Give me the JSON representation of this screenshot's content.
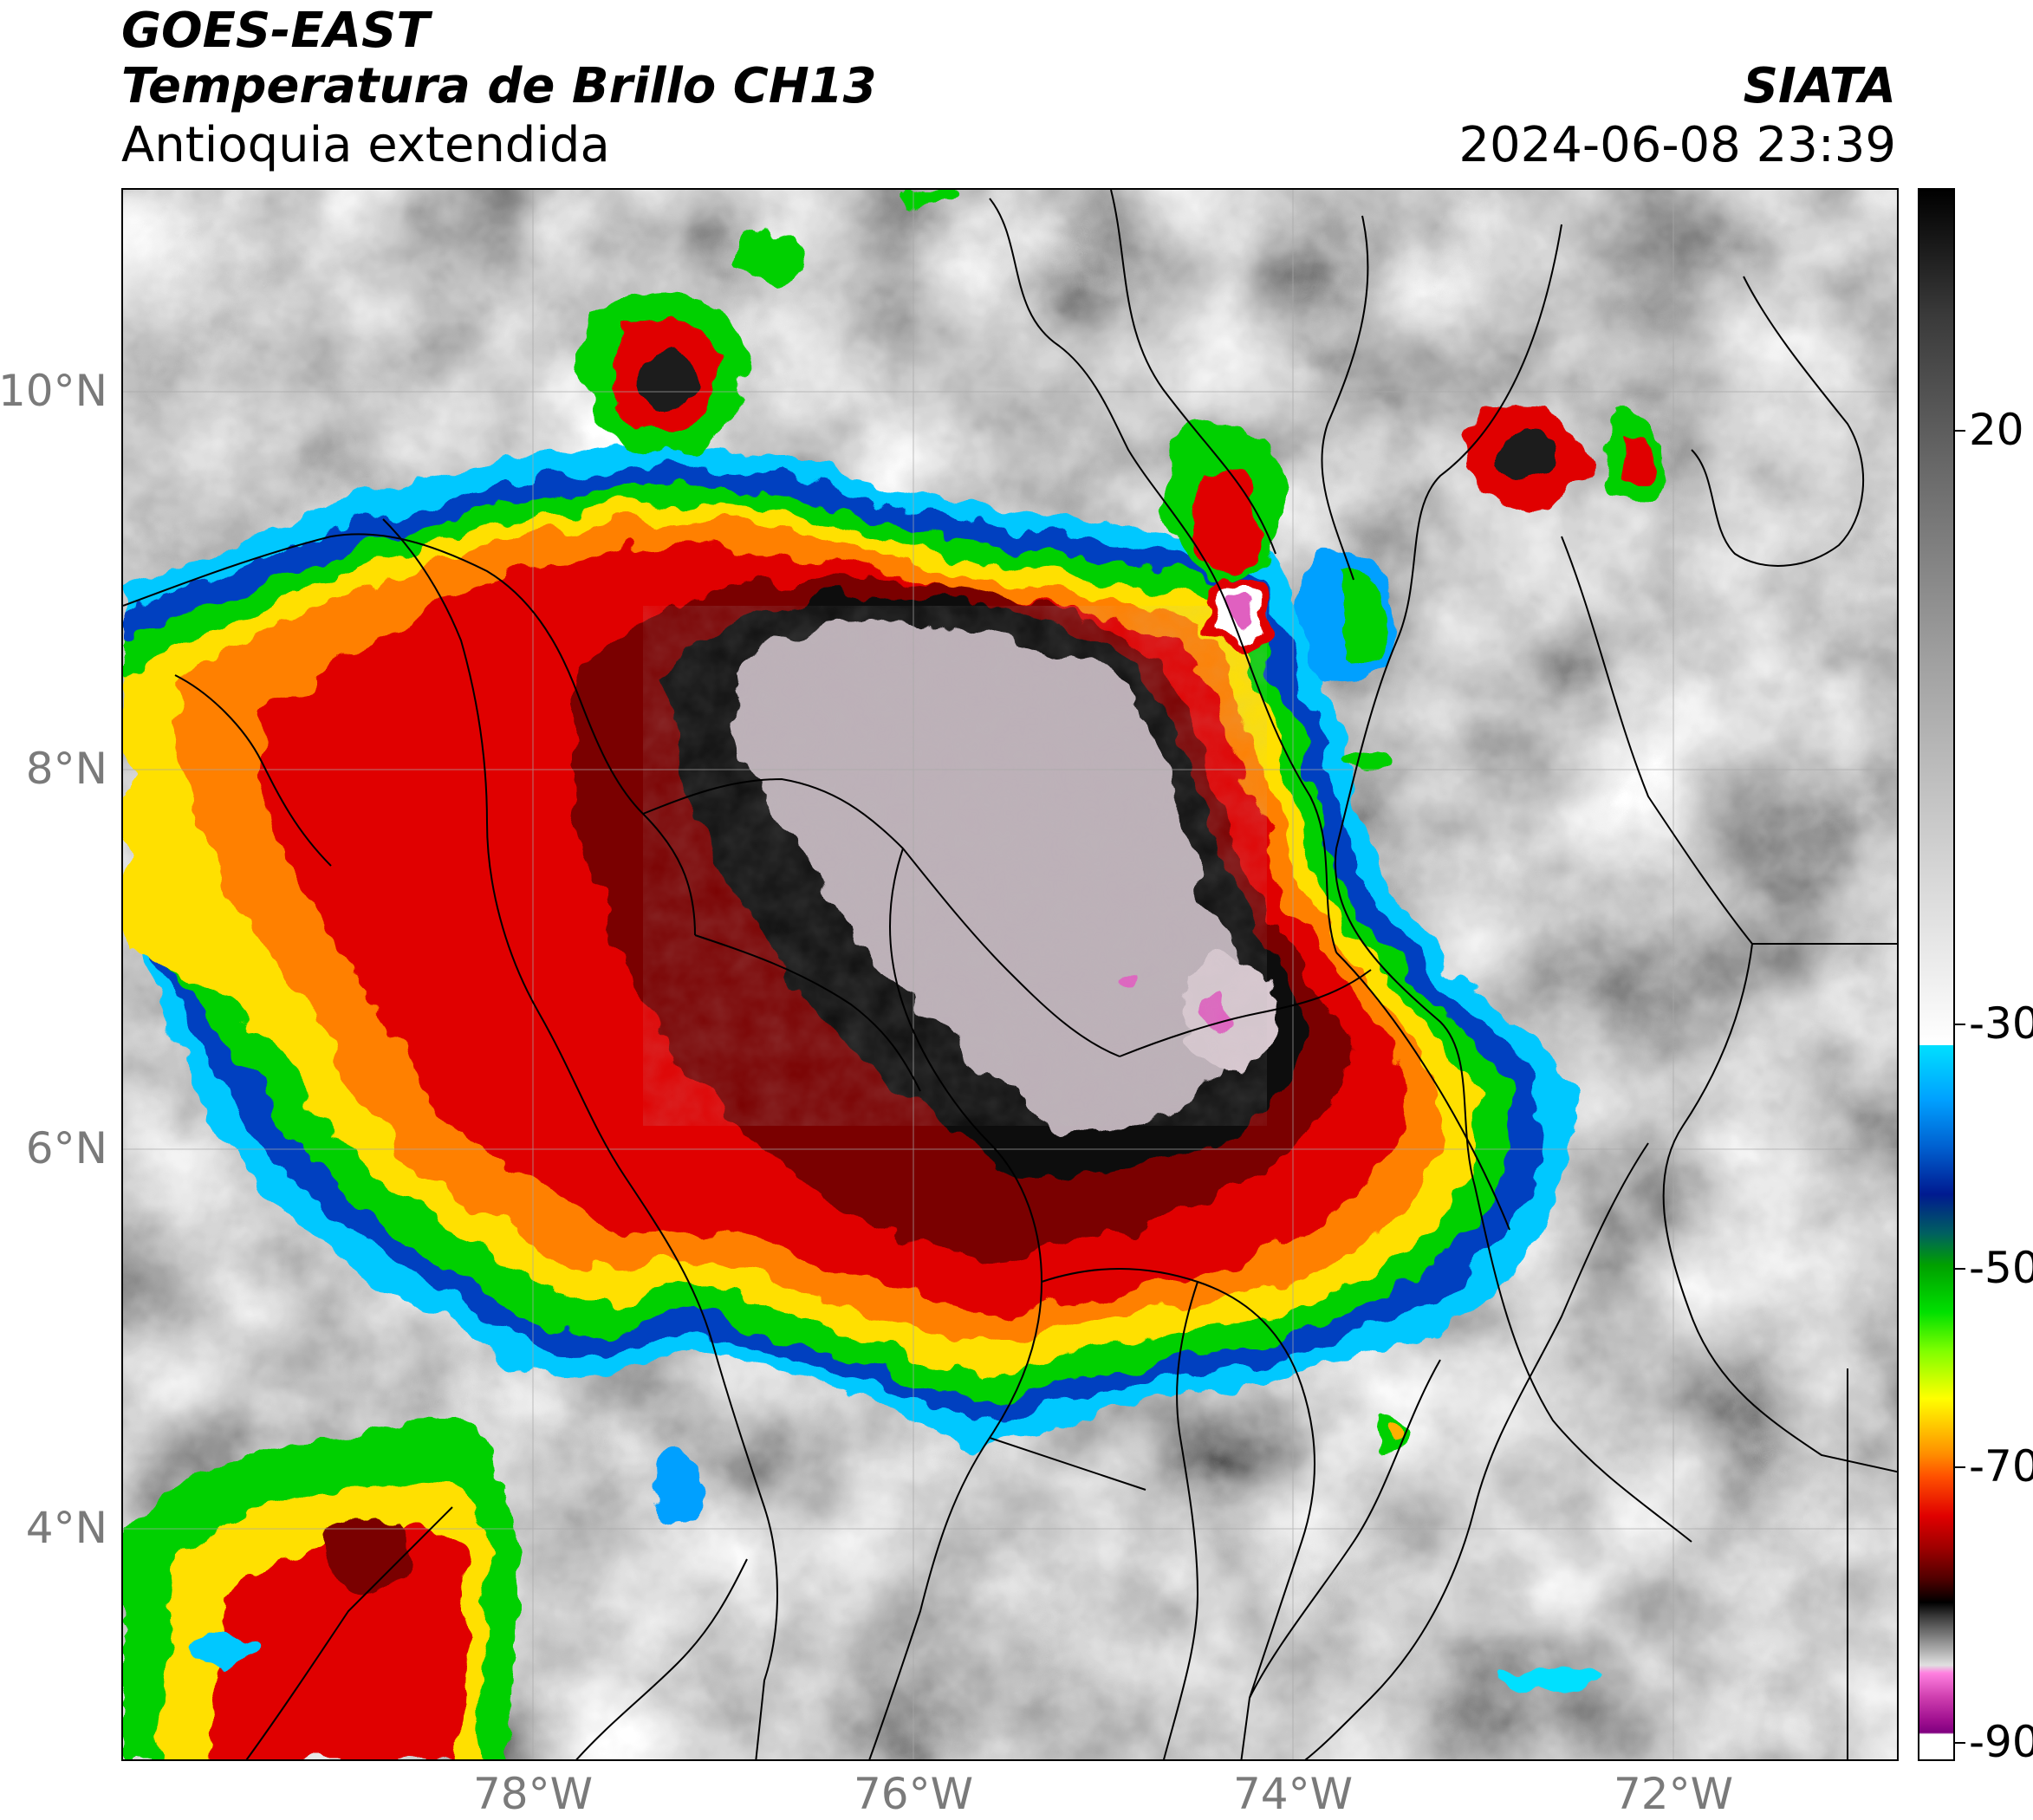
{
  "header": {
    "satellite": "GOES-EAST",
    "product": "Temperatura de Brillo CH13",
    "region": "Antioquia extendida",
    "agency": "SIATA",
    "datetime": "2024-06-08 23:39"
  },
  "map": {
    "lat_labels": [
      "10°N",
      "8°N",
      "6°N",
      "4°N"
    ],
    "lon_labels": [
      "78°W",
      "76°W",
      "74°W",
      "72°W"
    ]
  },
  "colorbar": {
    "tick_labels": [
      "20",
      "-30",
      "-50",
      "-70",
      "-90"
    ],
    "colors": {
      "gray_warm": "#ffffff",
      "cyan": "#00e0ff",
      "blue": "#0030a0",
      "green": "#00d000",
      "yellow": "#ffe000",
      "orange": "#ff8000",
      "red": "#e00000",
      "dark_red": "#600000",
      "black": "#000000",
      "pink": "#e060c0",
      "purple": "#800080"
    }
  }
}
